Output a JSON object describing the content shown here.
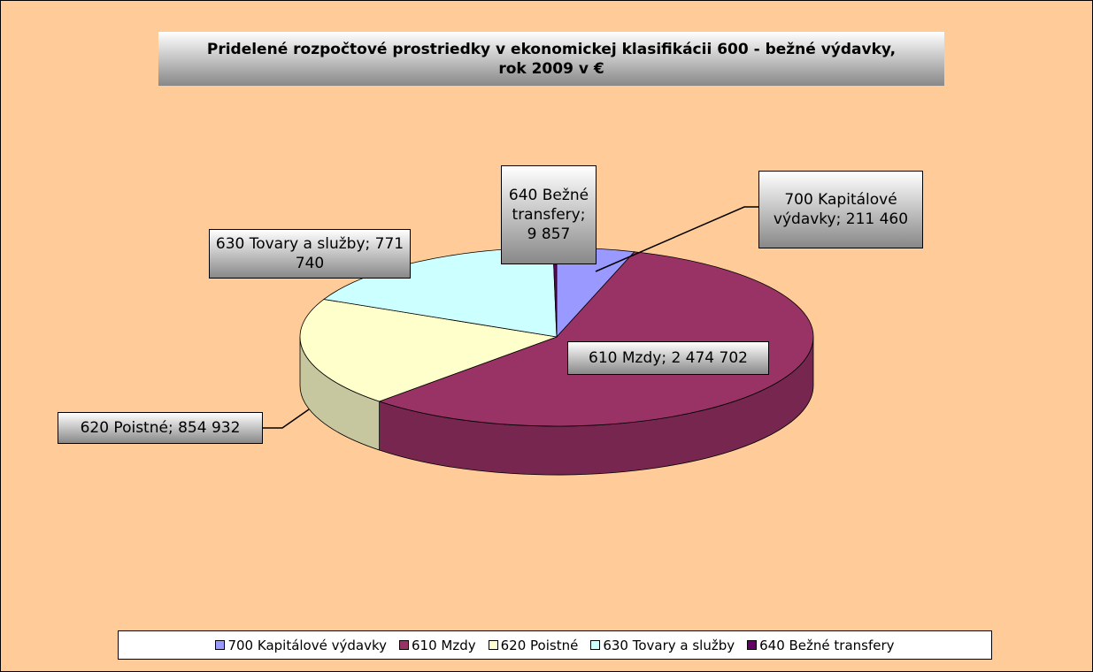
{
  "chart_data": {
    "type": "pie3d",
    "title": "Pridelené rozpočtové prostriedky v ekonomickej klasifikácii 600 - bežné výdavky, rok 2009 v €",
    "categories": [
      "700 Kapitálové výdavky",
      "610 Mzdy",
      "620 Poistné",
      "630 Tovary a služby",
      "640 Bežné transfery"
    ],
    "values": [
      211460,
      2474702,
      854932,
      771740,
      9857
    ],
    "value_labels": [
      "211 460",
      "2 474 702",
      "854 932",
      "771 740",
      "9 857"
    ],
    "data_label_separator": ";",
    "colors": [
      "#9999ff",
      "#993366",
      "#ffffcc",
      "#ccffff",
      "#660066"
    ],
    "legend": "bottom"
  }
}
